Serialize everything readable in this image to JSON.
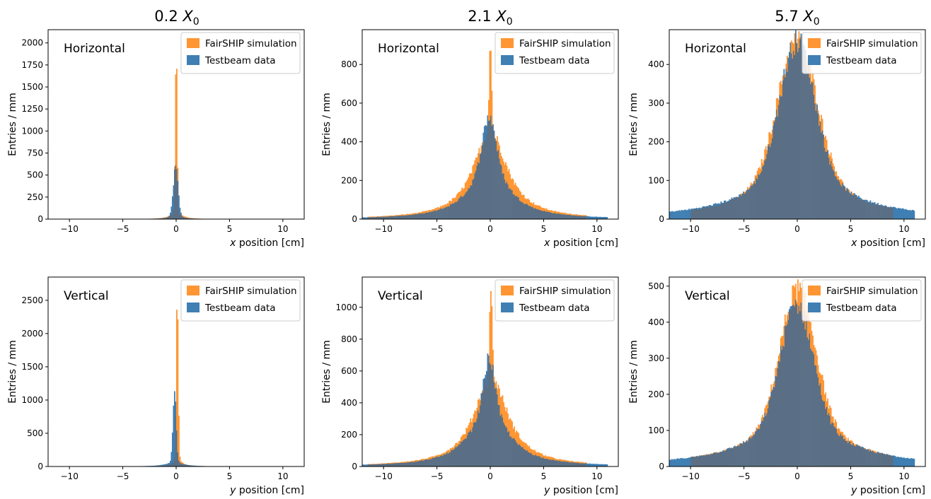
{
  "figure": {
    "column_titles": [
      {
        "prefix": "0.2 ",
        "symbol": "X",
        "subscript": "0"
      },
      {
        "prefix": "2.1 ",
        "symbol": "X",
        "subscript": "0"
      },
      {
        "prefix": "5.7 ",
        "symbol": "X",
        "subscript": "0"
      }
    ]
  },
  "colors": {
    "simulation": "#ff9633",
    "testbeam": "#3f7fb3",
    "overlap": "#5a6f85"
  },
  "chart_data": [
    {
      "type": "bar",
      "column": "0.2 X0",
      "row_label": "Horizontal",
      "xlabel": {
        "var": "x",
        "text": " position [cm]"
      },
      "ylabel": "Entries / mm",
      "xlim": [
        -12,
        12
      ],
      "ylim": [
        0,
        2150
      ],
      "xticks": [
        -10,
        -5,
        0,
        5,
        10
      ],
      "xtick_labels": [
        "−10",
        "−5",
        "0",
        "5",
        "10"
      ],
      "yticks": [
        0,
        250,
        500,
        750,
        1000,
        1250,
        1500,
        1750,
        2000
      ],
      "ytick_labels": [
        "0",
        "250",
        "500",
        "750",
        "1000",
        "1250",
        "1500",
        "1750",
        "2000"
      ],
      "legend": {
        "position": "top-right",
        "entries": [
          "FairSHIP simulation",
          "Testbeam data"
        ]
      },
      "series": [
        {
          "name": "FairSHIP simulation",
          "peak": 2040,
          "center": 0.0,
          "core_width": 0.09,
          "tail_width": 0.6,
          "tail_frac": 0.04,
          "range": [
            -11.5,
            11
          ]
        },
        {
          "name": "Testbeam data",
          "peak": 600,
          "center": -0.05,
          "core_width": 0.22,
          "tail_width": 0.8,
          "tail_frac": 0.06,
          "range": [
            -11.5,
            11
          ]
        }
      ]
    },
    {
      "type": "bar",
      "column": "2.1 X0",
      "row_label": "Horizontal",
      "xlabel": {
        "var": "x",
        "text": " position [cm]"
      },
      "ylabel": "Entries / mm",
      "xlim": [
        -12,
        12
      ],
      "ylim": [
        0,
        980
      ],
      "xticks": [
        -10,
        -5,
        0,
        5,
        10
      ],
      "xtick_labels": [
        "−10",
        "−5",
        "0",
        "5",
        "10"
      ],
      "yticks": [
        0,
        200,
        400,
        600,
        800
      ],
      "ytick_labels": [
        "0",
        "200",
        "400",
        "600",
        "800"
      ],
      "legend": {
        "position": "top-right",
        "entries": [
          "FairSHIP simulation",
          "Testbeam data"
        ]
      },
      "series": [
        {
          "name": "FairSHIP simulation",
          "peak": 910,
          "center": 0.0,
          "core_width": 0.12,
          "tail_width": 1.9,
          "tail_frac": 0.5,
          "range": [
            -11.5,
            9
          ]
        },
        {
          "name": "Testbeam data",
          "peak": 530,
          "center": -0.1,
          "core_width": 0.6,
          "tail_width": 2.1,
          "tail_frac": 0.55,
          "range": [
            -12,
            11
          ]
        }
      ]
    },
    {
      "type": "bar",
      "column": "5.7 X0",
      "row_label": "Horizontal",
      "xlabel": {
        "var": "x",
        "text": " position [cm]"
      },
      "ylabel": "Entries / mm",
      "xlim": [
        -12,
        12
      ],
      "ylim": [
        0,
        490
      ],
      "xticks": [
        -10,
        -5,
        0,
        5,
        10
      ],
      "xtick_labels": [
        "−10",
        "−5",
        "0",
        "5",
        "10"
      ],
      "yticks": [
        0,
        100,
        200,
        300,
        400
      ],
      "ytick_labels": [
        "0",
        "100",
        "200",
        "300",
        "400"
      ],
      "legend": {
        "position": "top-right",
        "entries": [
          "FairSHIP simulation",
          "Testbeam data"
        ]
      },
      "series": [
        {
          "name": "FairSHIP simulation",
          "peak": 460,
          "center": 0.0,
          "core_width": 1.8,
          "tail_width": 4.5,
          "tail_frac": 0.3,
          "range": [
            -10,
            9
          ]
        },
        {
          "name": "Testbeam data",
          "peak": 460,
          "center": 0.0,
          "core_width": 1.6,
          "tail_width": 4.8,
          "tail_frac": 0.3,
          "range": [
            -12,
            11
          ]
        }
      ]
    },
    {
      "type": "bar",
      "column": "0.2 X0",
      "row_label": "Vertical",
      "xlabel": {
        "var": "y",
        "text": " position [cm]"
      },
      "ylabel": "Entries / mm",
      "xlim": [
        -12,
        12
      ],
      "ylim": [
        0,
        2850
      ],
      "xticks": [
        -10,
        -5,
        0,
        5,
        10
      ],
      "xtick_labels": [
        "−10",
        "−5",
        "0",
        "5",
        "10"
      ],
      "yticks": [
        0,
        500,
        1000,
        1500,
        2000,
        2500
      ],
      "ytick_labels": [
        "0",
        "500",
        "1000",
        "1500",
        "2000",
        "2500"
      ],
      "legend": {
        "position": "top-right",
        "entries": [
          "FairSHIP simulation",
          "Testbeam data"
        ]
      },
      "series": [
        {
          "name": "FairSHIP simulation",
          "peak": 2680,
          "center": 0.1,
          "core_width": 0.09,
          "tail_width": 0.5,
          "tail_frac": 0.04,
          "range": [
            -11.5,
            11
          ]
        },
        {
          "name": "Testbeam data",
          "peak": 1150,
          "center": -0.15,
          "core_width": 0.15,
          "tail_width": 0.9,
          "tail_frac": 0.06,
          "range": [
            -11.5,
            11
          ]
        }
      ]
    },
    {
      "type": "bar",
      "column": "2.1 X0",
      "row_label": "Vertical",
      "xlabel": {
        "var": "y",
        "text": " position [cm]"
      },
      "ylabel": "Entries / mm",
      "xlim": [
        -12,
        12
      ],
      "ylim": [
        0,
        1190
      ],
      "xticks": [
        -10,
        -5,
        0,
        5,
        10
      ],
      "xtick_labels": [
        "−10",
        "−5",
        "0",
        "5",
        "10"
      ],
      "yticks": [
        0,
        200,
        400,
        600,
        800,
        1000
      ],
      "ytick_labels": [
        "0",
        "200",
        "400",
        "600",
        "800",
        "1000"
      ],
      "legend": {
        "position": "top-right",
        "entries": [
          "FairSHIP simulation",
          "Testbeam data"
        ]
      },
      "series": [
        {
          "name": "FairSHIP simulation",
          "peak": 1130,
          "center": 0.05,
          "core_width": 0.12,
          "tail_width": 1.9,
          "tail_frac": 0.5,
          "range": [
            -11.5,
            9
          ]
        },
        {
          "name": "Testbeam data",
          "peak": 680,
          "center": -0.1,
          "core_width": 0.5,
          "tail_width": 2.1,
          "tail_frac": 0.55,
          "range": [
            -12,
            11
          ]
        }
      ]
    },
    {
      "type": "bar",
      "column": "5.7 X0",
      "row_label": "Vertical",
      "xlabel": {
        "var": "y",
        "text": " position [cm]"
      },
      "ylabel": "Entries / mm",
      "xlim": [
        -12,
        12
      ],
      "ylim": [
        0,
        525
      ],
      "xticks": [
        -10,
        -5,
        0,
        5,
        10
      ],
      "xtick_labels": [
        "−10",
        "−5",
        "0",
        "5",
        "10"
      ],
      "yticks": [
        0,
        100,
        200,
        300,
        400,
        500
      ],
      "ytick_labels": [
        "0",
        "100",
        "200",
        "300",
        "400",
        "500"
      ],
      "legend": {
        "position": "top-right",
        "entries": [
          "FairSHIP simulation",
          "Testbeam data"
        ]
      },
      "series": [
        {
          "name": "FairSHIP simulation",
          "peak": 490,
          "center": 0.05,
          "core_width": 1.6,
          "tail_width": 4.5,
          "tail_frac": 0.3,
          "range": [
            -10,
            9
          ]
        },
        {
          "name": "Testbeam data",
          "peak": 450,
          "center": -0.05,
          "core_width": 1.5,
          "tail_width": 4.8,
          "tail_frac": 0.3,
          "range": [
            -12,
            11
          ]
        }
      ]
    }
  ]
}
